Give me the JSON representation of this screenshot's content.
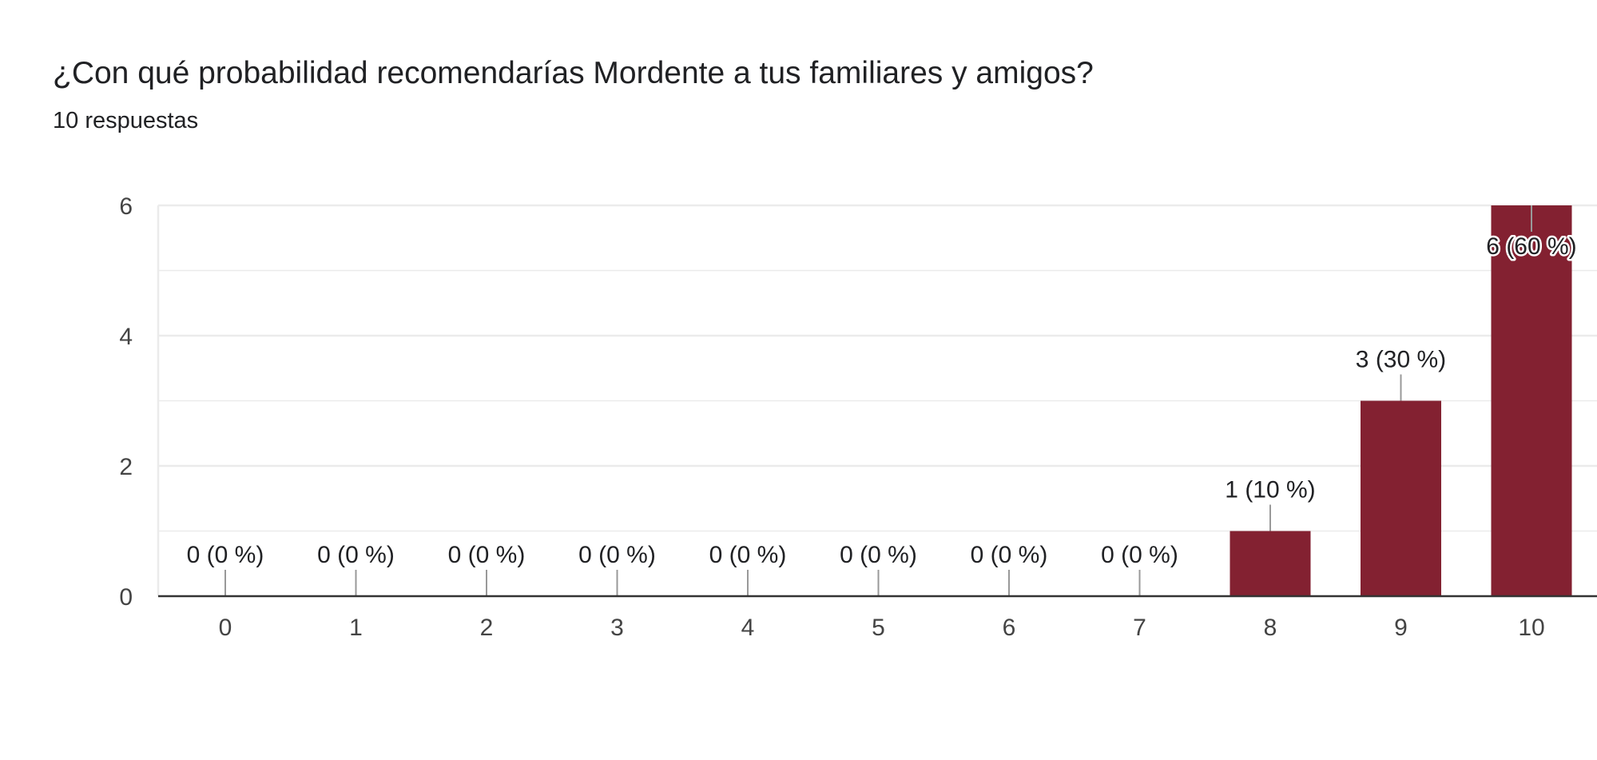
{
  "header": {
    "title": "¿Con qué probabilidad recomendarías Mordente a tus familiares y amigos?",
    "subtitle": "10 respuestas"
  },
  "colors": {
    "bar": "#832131",
    "grid": "#ebebeb",
    "axis": "#333333",
    "leader": "#999999",
    "label_halo": "#ffffff"
  },
  "chart_data": {
    "type": "bar",
    "title": "¿Con qué probabilidad recomendarías Mordente a tus familiares y amigos?",
    "subtitle": "10 respuestas",
    "categories": [
      "0",
      "1",
      "2",
      "3",
      "4",
      "5",
      "6",
      "7",
      "8",
      "9",
      "10"
    ],
    "values": [
      0,
      0,
      0,
      0,
      0,
      0,
      0,
      0,
      1,
      3,
      6
    ],
    "data_labels": [
      "0 (0 %)",
      "0 (0 %)",
      "0 (0 %)",
      "0 (0 %)",
      "0 (0 %)",
      "0 (0 %)",
      "0 (0 %)",
      "0 (0 %)",
      "1 (10 %)",
      "3 (30 %)",
      "6 (60 %)"
    ],
    "xlabel": "",
    "ylabel": "",
    "ylim": [
      0,
      6
    ],
    "yticks": [
      0,
      2,
      4,
      6
    ],
    "grid": true,
    "legend": "none"
  }
}
